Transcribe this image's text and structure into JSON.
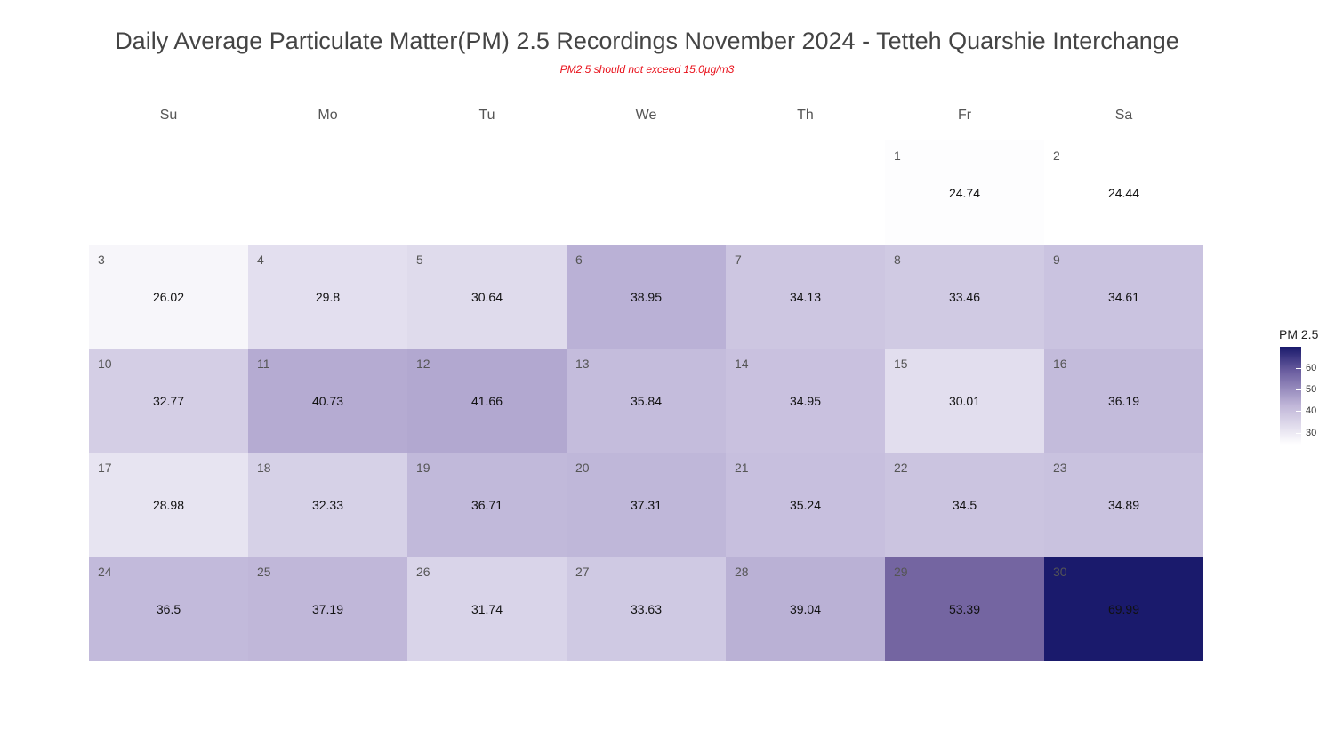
{
  "chart_data": {
    "type": "heatmap",
    "title": "Daily Average Particulate Matter(PM) 2.5 Recordings November 2024 -  Tetteh Quarshie Interchange",
    "subtitle": "PM2.5 should not exceed 15.0µg/m3",
    "weekdays": [
      "Su",
      "Mo",
      "Tu",
      "We",
      "Th",
      "Fr",
      "Sa"
    ],
    "first_weekday_index": 5,
    "days": [
      {
        "day": "1",
        "value": 24.74
      },
      {
        "day": "2",
        "value": 24.44
      },
      {
        "day": "3",
        "value": 26.02
      },
      {
        "day": "4",
        "value": 29.8
      },
      {
        "day": "5",
        "value": 30.64
      },
      {
        "day": "6",
        "value": 38.95
      },
      {
        "day": "7",
        "value": 34.13
      },
      {
        "day": "8",
        "value": 33.46
      },
      {
        "day": "9",
        "value": 34.61
      },
      {
        "day": "10",
        "value": 32.77
      },
      {
        "day": "11",
        "value": 40.73
      },
      {
        "day": "12",
        "value": 41.66
      },
      {
        "day": "13",
        "value": 35.84
      },
      {
        "day": "14",
        "value": 34.95
      },
      {
        "day": "15",
        "value": 30.01
      },
      {
        "day": "16",
        "value": 36.19
      },
      {
        "day": "17",
        "value": 28.98
      },
      {
        "day": "18",
        "value": 32.33
      },
      {
        "day": "19",
        "value": 36.71
      },
      {
        "day": "20",
        "value": 37.31
      },
      {
        "day": "21",
        "value": 35.24
      },
      {
        "day": "22",
        "value": 34.5
      },
      {
        "day": "23",
        "value": 34.89
      },
      {
        "day": "24",
        "value": 36.5
      },
      {
        "day": "25",
        "value": 37.19
      },
      {
        "day": "26",
        "value": 31.74
      },
      {
        "day": "27",
        "value": 33.63
      },
      {
        "day": "28",
        "value": 39.04
      },
      {
        "day": "29",
        "value": 53.39
      },
      {
        "day": "30",
        "value": 69.99
      }
    ],
    "legend": {
      "title": "PM 2.5",
      "ticks": [
        30,
        40,
        50,
        60
      ],
      "range": [
        24.44,
        69.99
      ],
      "low_color": "#ffffff",
      "high_color": "#1a1a6c"
    }
  }
}
